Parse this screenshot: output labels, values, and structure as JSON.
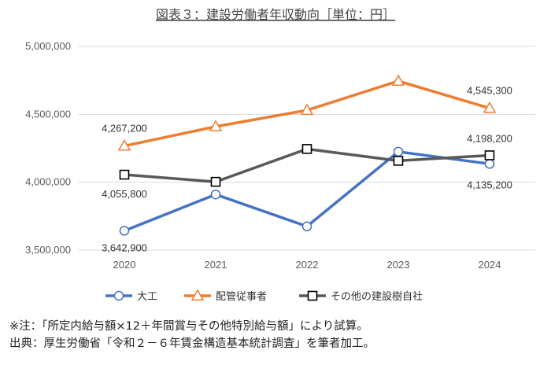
{
  "chart_data": {
    "type": "line",
    "title": "図表３：建設労働者年収動向［単位：円］",
    "x": [
      "2020",
      "2021",
      "2022",
      "2023",
      "2024"
    ],
    "ylim": [
      3500000,
      5000000
    ],
    "yticks": [
      "3,500,000",
      "4,000,000",
      "4,500,000",
      "5,000,000"
    ],
    "ytick_values": [
      3500000,
      4000000,
      4500000,
      5000000
    ],
    "grid": true,
    "legend_position": "bottom",
    "series": [
      {
        "name": "大工",
        "color": "#4472C4",
        "marker": "circle",
        "values": [
          3642900,
          3910000,
          3675000,
          4225000,
          4135200
        ],
        "data_labels": [
          "3,642,900",
          "",
          "",
          "",
          "4,135,200"
        ]
      },
      {
        "name": "配管従事者",
        "color": "#ED7D31",
        "marker": "triangle",
        "values": [
          4267200,
          4410000,
          4530000,
          4745000,
          4545300
        ],
        "data_labels": [
          "4,267,200",
          "",
          "",
          "",
          "4,545,300"
        ]
      },
      {
        "name": "その他の建設樹自社",
        "color": "#595959",
        "marker": "square",
        "values": [
          4055800,
          4003000,
          4245000,
          4158000,
          4198200
        ],
        "data_labels": [
          "4,055,800",
          "",
          "",
          "",
          "4,198,200"
        ]
      }
    ]
  },
  "notes": {
    "line1": "※注：「所定内給与額×12＋年間賞与その他特別給与額」により試算。",
    "line2": "出典：厚生労働省「令和２－６年賃金構造基本統計調査」を筆者加工。"
  }
}
